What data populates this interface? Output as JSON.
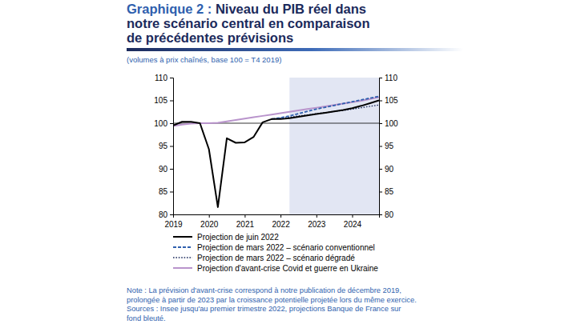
{
  "chart_data": {
    "type": "line",
    "title": [
      "Graphique 2 : Niveau du PIB réel dans",
      "notre scénario central en comparaison",
      "de précédentes prévisions"
    ],
    "subtitle": "(volumes à prix chaînés, base 100 = T4 2019)",
    "x": [
      2019,
      2019.25,
      2019.5,
      2019.75,
      2020,
      2020.25,
      2020.5,
      2020.75,
      2021,
      2021.25,
      2021.5,
      2021.75,
      2022,
      2022.25,
      2022.5,
      2022.75,
      2023,
      2023.25,
      2023.5,
      2023.75,
      2024,
      2024.25,
      2024.5,
      2024.75
    ],
    "series": [
      {
        "name": "Projection de juin 2022",
        "color": "#000000",
        "line_style": "solid",
        "values": [
          99.5,
          100.3,
          100.3,
          100,
          94.3,
          81.6,
          96.7,
          95.7,
          95.8,
          97.0,
          100.2,
          100.9,
          100.9,
          101.1,
          101.4,
          101.7,
          102.0,
          102.3,
          102.6,
          102.9,
          103.3,
          103.8,
          104.4,
          105.0
        ]
      },
      {
        "name": "Projection de mars 2022 – scénario conventionnel",
        "color": "#2f5fae",
        "line_style": "dashed",
        "values": [
          null,
          null,
          null,
          null,
          null,
          null,
          null,
          null,
          null,
          null,
          null,
          100.9,
          101.2,
          101.6,
          102.1,
          102.6,
          103.1,
          103.5,
          103.9,
          104.3,
          104.7,
          105.1,
          105.5,
          105.9
        ]
      },
      {
        "name": "Projection de mars 2022 – scénario dégradé",
        "color": "#1b2a5c",
        "line_style": "dotted",
        "values": [
          null,
          null,
          null,
          null,
          null,
          null,
          null,
          null,
          null,
          null,
          null,
          100.9,
          101.1,
          101.3,
          101.6,
          101.8,
          102.1,
          102.3,
          102.6,
          102.8,
          103.1,
          103.4,
          103.7,
          104.0
        ]
      },
      {
        "name": "Projection d'avant-crise Covid et guerre en Ukraine",
        "color": "#b994cc",
        "line_style": "solid",
        "values": [
          99.4,
          99.7,
          99.9,
          100.0,
          100.0,
          100.1,
          100.4,
          100.7,
          101.0,
          101.3,
          101.6,
          101.9,
          102.2,
          102.5,
          102.8,
          103.1,
          103.4,
          103.7,
          104.0,
          104.3,
          104.6,
          104.9,
          105.3,
          105.7
        ]
      }
    ],
    "xlim": [
      2019,
      2024.75
    ],
    "xticks": [
      2019,
      2020,
      2021,
      2022,
      2023,
      2024
    ],
    "ylim": [
      80,
      110
    ],
    "yticks": [
      80,
      85,
      90,
      95,
      100,
      105,
      110
    ],
    "y2lim": [
      80,
      110
    ],
    "y2ticks": [
      80,
      85,
      90,
      95,
      100,
      105,
      110
    ],
    "reference_line": 100,
    "shade_start": 2022.25,
    "legend": "bottom",
    "notes": [
      "Note : La prévision d'avant-crise correspond à notre publication de décembre 2019,",
      "prolongée à partir de 2023 par la croissance potentielle projetée lors du même exercice.",
      "Sources : Insee jusqu'au premier trimestre 2022, projections Banque de France sur",
      "fond bleuté."
    ]
  }
}
